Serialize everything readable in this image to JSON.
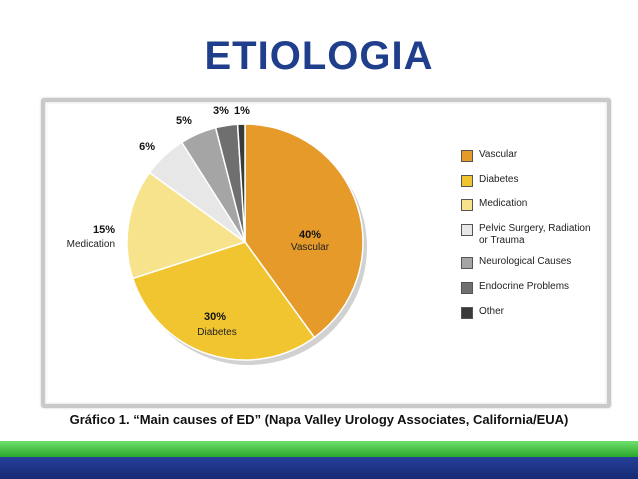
{
  "slide": {
    "title": "ETIOLOGIA",
    "caption": "Gráfico 1. “Main causes of ED” (Napa Valley Urology Associates, California/EUA)"
  },
  "chart_data": {
    "type": "pie",
    "slices": [
      {
        "name": "Vascular",
        "value": 40,
        "label": "40%",
        "sublabel": "Vascular",
        "color": "#e59a2a"
      },
      {
        "name": "Diabetes",
        "value": 30,
        "label": "30%",
        "sublabel": "Diabetes",
        "color": "#f1c52f"
      },
      {
        "name": "Medication",
        "value": 15,
        "label": "15%",
        "sublabel": "Medication",
        "color": "#f6e38c"
      },
      {
        "name": "Pelvic Surgery, Radiation\nor Trauma",
        "value": 6,
        "label": "6%",
        "sublabel": "",
        "color": "#e7e7e7"
      },
      {
        "name": "Neurological Causes",
        "value": 5,
        "label": "5%",
        "sublabel": "",
        "color": "#a5a5a5"
      },
      {
        "name": "Endocrine Problems",
        "value": 3,
        "label": "3%",
        "sublabel": "",
        "color": "#6f6f6f"
      },
      {
        "name": "Other",
        "value": 1,
        "label": "1%",
        "sublabel": "",
        "color": "#3a3a3a"
      }
    ],
    "legend_position": "right"
  }
}
